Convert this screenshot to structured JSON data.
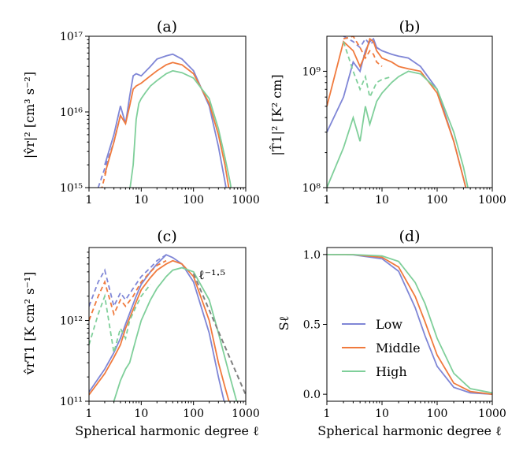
{
  "colors": {
    "low": "#7f86d6",
    "middle": "#f07a3d",
    "high": "#7fcf9a",
    "reference": "#808080"
  },
  "chart_data": [
    {
      "type": "line",
      "panel": "(a)",
      "ylabel": "|v̂r|² [cm³ s⁻²]",
      "xscale": "log",
      "yscale": "log",
      "xlim": [
        1,
        1000
      ],
      "ylim": [
        1000000000000000.0,
        1e+17
      ],
      "xticks": [
        "1",
        "10",
        "100",
        "1000"
      ],
      "yticks": [
        "10¹⁵",
        "10¹⁶",
        "10¹⁷"
      ],
      "series": [
        {
          "name": "Low",
          "style": "solid",
          "x": [
            2,
            3,
            4,
            5,
            6,
            7,
            8,
            10,
            15,
            20,
            30,
            40,
            60,
            100,
            200,
            300,
            400,
            500
          ],
          "y": [
            2000000000000000.0,
            5000000000000000.0,
            1.2e+16,
            7000000000000000.0,
            1.6e+16,
            3e+16,
            3.2e+16,
            3e+16,
            4e+16,
            5e+16,
            5.5e+16,
            5.8e+16,
            5e+16,
            3.5e+16,
            1.2e+16,
            3500000000000000.0,
            1200000000000000.0,
            500000000000000.0
          ]
        },
        {
          "name": "Low",
          "style": "dashed",
          "x": [
            1.5,
            2,
            3,
            4
          ],
          "y": [
            1000000000000000.0,
            1800000000000000.0,
            4000000000000000.0,
            9000000000000000.0
          ]
        },
        {
          "name": "Middle",
          "style": "solid",
          "x": [
            2,
            3,
            4,
            5,
            6,
            7,
            8,
            10,
            15,
            20,
            30,
            40,
            60,
            100,
            200,
            300,
            400,
            500
          ],
          "y": [
            1500000000000000.0,
            4000000000000000.0,
            9000000000000000.0,
            7000000000000000.0,
            1.2e+16,
            2e+16,
            2.2e+16,
            2.4e+16,
            3e+16,
            3.5e+16,
            4.2e+16,
            4.5e+16,
            4.2e+16,
            3.2e+16,
            1.3e+16,
            5000000000000000.0,
            2000000000000000.0,
            800000000000000.0
          ]
        },
        {
          "name": "Middle",
          "style": "dashed",
          "x": [
            1.7,
            2.2
          ],
          "y": [
            900000000000000.0,
            1800000000000000.0
          ]
        },
        {
          "name": "High",
          "style": "solid",
          "x": [
            6,
            7,
            8,
            9,
            10,
            12,
            15,
            20,
            30,
            40,
            60,
            100,
            200,
            300,
            400,
            500,
            550
          ],
          "y": [
            900000000000000.0,
            2000000000000000.0,
            8000000000000000.0,
            1.3e+16,
            1.5e+16,
            1.8e+16,
            2.2e+16,
            2.6e+16,
            3.2e+16,
            3.5e+16,
            3.3e+16,
            2.8e+16,
            1.5e+16,
            6000000000000000.0,
            2500000000000000.0,
            1200000000000000.0,
            800000000000000.0
          ]
        }
      ]
    },
    {
      "type": "line",
      "panel": "(b)",
      "ylabel": "|T̂1|² [K² cm]",
      "xscale": "log",
      "yscale": "log",
      "xlim": [
        1,
        1000
      ],
      "ylim": [
        100000000.0,
        2000000000.0
      ],
      "xticks": [
        "1",
        "10",
        "100",
        "1000"
      ],
      "yticks": [
        "10⁸",
        "10⁹"
      ],
      "series": [
        {
          "name": "Low",
          "style": "solid",
          "x": [
            1,
            2,
            3,
            4,
            5,
            6,
            7,
            8,
            10,
            15,
            20,
            30,
            50,
            100,
            200,
            300,
            400
          ],
          "y": [
            300000000.0,
            600000000.0,
            1200000000.0,
            1000000000.0,
            1500000000.0,
            1800000000.0,
            1900000000.0,
            1600000000.0,
            1500000000.0,
            1400000000.0,
            1350000000.0,
            1300000000.0,
            1100000000.0,
            700000000.0,
            250000000.0,
            120000000.0,
            70000000.0
          ]
        },
        {
          "name": "Low",
          "style": "dashed",
          "x": [
            2,
            3,
            4,
            5,
            6,
            7,
            8,
            10
          ],
          "y": [
            2000000000.0,
            1800000000.0,
            1600000000.0,
            1900000000.0,
            1700000000.0,
            1800000000.0,
            1600000000.0,
            1500000000.0
          ]
        },
        {
          "name": "Middle",
          "style": "solid",
          "x": [
            1,
            2,
            3,
            4,
            5,
            6,
            7,
            8,
            10,
            15,
            20,
            30,
            50,
            100,
            200,
            300,
            400
          ],
          "y": [
            500000000.0,
            1800000000.0,
            1500000000.0,
            1100000000.0,
            1400000000.0,
            1900000000.0,
            1800000000.0,
            1500000000.0,
            1300000000.0,
            1200000000.0,
            1100000000.0,
            1050000000.0,
            1000000000.0,
            650000000.0,
            250000000.0,
            120000000.0,
            70000000.0
          ]
        },
        {
          "name": "Middle",
          "style": "dashed",
          "x": [
            2,
            3,
            4,
            5,
            6,
            7,
            8,
            10
          ],
          "y": [
            1900000000.0,
            2000000000.0,
            1600000000.0,
            1300000000.0,
            1500000000.0,
            1400000000.0,
            1200000000.0,
            1100000000.0
          ]
        },
        {
          "name": "High",
          "style": "solid",
          "x": [
            1,
            2,
            3,
            4,
            5,
            6,
            8,
            10,
            15,
            20,
            30,
            50,
            100,
            200,
            300,
            400
          ],
          "y": [
            100000000.0,
            220000000.0,
            400000000.0,
            250000000.0,
            500000000.0,
            350000000.0,
            550000000.0,
            650000000.0,
            800000000.0,
            900000000.0,
            1000000000.0,
            950000000.0,
            700000000.0,
            300000000.0,
            150000000.0,
            80000000.0
          ]
        },
        {
          "name": "High",
          "style": "dashed",
          "x": [
            2,
            3,
            4,
            5,
            6,
            7,
            8,
            10,
            15
          ],
          "y": [
            1800000000.0,
            1000000000.0,
            700000000.0,
            900000000.0,
            600000000.0,
            700000000.0,
            800000000.0,
            850000000.0,
            900000000.0
          ]
        }
      ]
    },
    {
      "type": "line",
      "panel": "(c)",
      "ylabel": "v̂rT1 [K cm² s⁻¹]",
      "xlabel": "Spherical harmonic degree ℓ",
      "xscale": "log",
      "yscale": "log",
      "xlim": [
        1,
        1000
      ],
      "ylim": [
        100000000000.0,
        8000000000000.0
      ],
      "xticks": [
        "1",
        "10",
        "100",
        "1000"
      ],
      "yticks": [
        "10¹¹",
        "10¹²"
      ],
      "annotation": "ℓ⁻¹·⁵",
      "series": [
        {
          "name": "Low",
          "style": "solid",
          "x": [
            1,
            2,
            3,
            4,
            5,
            8,
            10,
            15,
            20,
            30,
            40,
            60,
            100,
            200,
            300,
            400
          ],
          "y": [
            130000000000.0,
            250000000000.0,
            400000000000.0,
            600000000000.0,
            900000000000.0,
            2000000000000.0,
            2800000000000.0,
            4000000000000.0,
            5000000000000.0,
            6500000000000.0,
            6000000000000.0,
            5000000000000.0,
            3000000000000.0,
            700000000000.0,
            200000000000.0,
            90000000000.0
          ]
        },
        {
          "name": "Low",
          "style": "dashed",
          "x": [
            1,
            1.5,
            2,
            3,
            4,
            5,
            7,
            10,
            15,
            20,
            30
          ],
          "y": [
            1500000000000.0,
            3000000000000.0,
            4200000000000.0,
            1500000000000.0,
            2200000000000.0,
            1800000000000.0,
            2500000000000.0,
            3500000000000.0,
            4500000000000.0,
            5500000000000.0,
            6500000000000.0
          ]
        },
        {
          "name": "Middle",
          "style": "solid",
          "x": [
            1,
            2,
            3,
            4,
            5,
            8,
            10,
            15,
            20,
            30,
            40,
            60,
            100,
            200,
            300,
            400,
            500
          ],
          "y": [
            120000000000.0,
            220000000000.0,
            350000000000.0,
            500000000000.0,
            800000000000.0,
            1700000000000.0,
            2400000000000.0,
            3400000000000.0,
            4200000000000.0,
            5000000000000.0,
            5500000000000.0,
            5000000000000.0,
            3500000000000.0,
            1000000000000.0,
            300000000000.0,
            150000000000.0,
            90000000000.0
          ]
        },
        {
          "name": "Middle",
          "style": "dashed",
          "x": [
            1,
            1.5,
            2,
            3,
            4,
            5,
            7,
            10,
            15,
            20,
            30
          ],
          "y": [
            1000000000000.0,
            2000000000000.0,
            3000000000000.0,
            1200000000000.0,
            1800000000000.0,
            1500000000000.0,
            2000000000000.0,
            3000000000000.0,
            4000000000000.0,
            4800000000000.0,
            5500000000000.0
          ]
        },
        {
          "name": "High",
          "style": "solid",
          "x": [
            3,
            4,
            5,
            6,
            8,
            10,
            15,
            20,
            30,
            40,
            60,
            100,
            200,
            300,
            500,
            700
          ],
          "y": [
            100000000000.0,
            180000000000.0,
            250000000000.0,
            300000000000.0,
            600000000000.0,
            1000000000000.0,
            1800000000000.0,
            2500000000000.0,
            3500000000000.0,
            4200000000000.0,
            4500000000000.0,
            4000000000000.0,
            1800000000000.0,
            700000000000.0,
            200000000000.0,
            90000000000.0
          ]
        },
        {
          "name": "High",
          "style": "dashed",
          "x": [
            1,
            1.5,
            2,
            3,
            4,
            5,
            6,
            8,
            10,
            15
          ],
          "y": [
            500000000000.0,
            1200000000000.0,
            2000000000000.0,
            400000000000.0,
            800000000000.0,
            600000000000.0,
            1000000000000.0,
            1500000000000.0,
            2000000000000.0,
            2800000000000.0
          ]
        },
        {
          "name": "ℓ⁻¹·⁵",
          "style": "dashed-reference",
          "x": [
            100,
            1000
          ],
          "y": [
            3800000000000.0,
            120000000000.0
          ]
        }
      ]
    },
    {
      "type": "line",
      "panel": "(d)",
      "ylabel": "Sℓ",
      "xlabel": "Spherical harmonic degree ℓ",
      "xscale": "log",
      "yscale": "linear",
      "xlim": [
        1,
        1000
      ],
      "ylim": [
        -0.05,
        1.05
      ],
      "xticks": [
        "1",
        "10",
        "100",
        "1000"
      ],
      "yticks": [
        "0.0",
        "0.5",
        "1.0"
      ],
      "legend": {
        "position": "lower-left",
        "entries": [
          "Low",
          "Middle",
          "High"
        ]
      },
      "series": [
        {
          "name": "Low",
          "style": "solid",
          "x": [
            1,
            3,
            10,
            20,
            40,
            60,
            100,
            200,
            400,
            1000
          ],
          "y": [
            1.0,
            0.998,
            0.97,
            0.88,
            0.62,
            0.42,
            0.2,
            0.05,
            0.01,
            0.0
          ]
        },
        {
          "name": "Middle",
          "style": "solid",
          "x": [
            1,
            3,
            10,
            20,
            40,
            60,
            100,
            200,
            400,
            1000
          ],
          "y": [
            1.0,
            0.999,
            0.98,
            0.91,
            0.7,
            0.52,
            0.28,
            0.08,
            0.02,
            0.0
          ]
        },
        {
          "name": "High",
          "style": "solid",
          "x": [
            1,
            3,
            10,
            20,
            40,
            60,
            100,
            200,
            400,
            1000
          ],
          "y": [
            1.0,
            0.999,
            0.99,
            0.95,
            0.8,
            0.65,
            0.4,
            0.15,
            0.04,
            0.01
          ]
        }
      ]
    }
  ]
}
